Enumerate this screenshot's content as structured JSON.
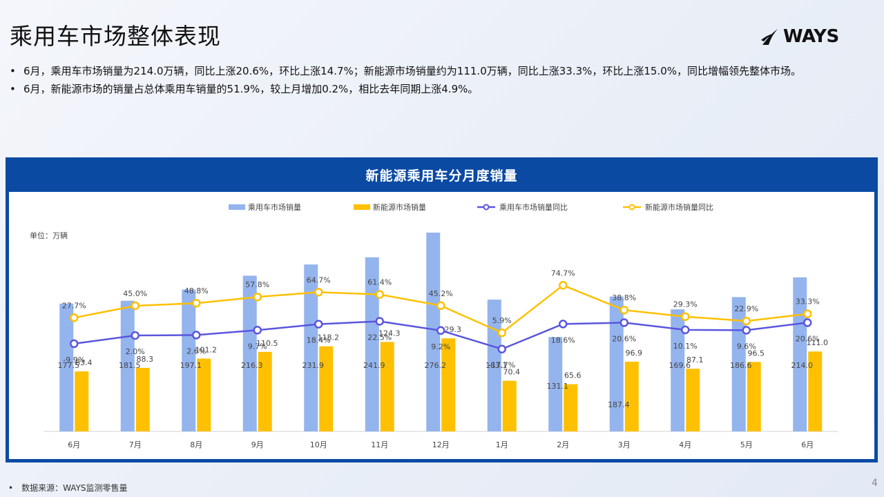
{
  "slide": {
    "title": "乘用车市场整体表现",
    "logo_text": "WAYS",
    "bullets": [
      "6月，乘用车市场销量为214.0万辆，同比上涨20.6%，环比上涨14.7%；新能源市场销量约为111.0万辆，同比上涨33.3%，环比上涨15.0%，同比增幅领先整体市场。",
      "6月，新能源市场的销量占总体乘用车销量的51.9%，较上月增加0.2%，相比去年同期上涨4.9%。"
    ],
    "source": "数据来源：WAYS监测零售量",
    "page_number": "4"
  },
  "colors": {
    "panel": "#0a4aa3",
    "total_bar": "#94b4ee",
    "nev_bar": "#ffc000",
    "total_line": "#5a55de",
    "nev_line": "#ffc000"
  },
  "chart_data": {
    "type": "bar",
    "title": "新能源乘用车分月度销量",
    "unit_label": "单位：万辆",
    "categories": [
      "6月",
      "7月",
      "8月",
      "9月",
      "10月",
      "11月",
      "12月",
      "1月",
      "2月",
      "3月",
      "4月",
      "5月",
      "6月"
    ],
    "series": [
      {
        "name": "乘用车市场销量",
        "kind": "bar",
        "values": [
          177.5,
          181.5,
          197.1,
          216.3,
          231.9,
          241.9,
          276.2,
          183.1,
          131.1,
          187.4,
          169.6,
          186.6,
          214.0
        ]
      },
      {
        "name": "新能源市场销量",
        "kind": "bar",
        "values": [
          83.4,
          88.3,
          101.2,
          110.5,
          118.2,
          124.3,
          129.3,
          70.4,
          65.6,
          96.9,
          87.1,
          96.5,
          111.0
        ]
      },
      {
        "name": "乘用车市场销量同比",
        "kind": "line",
        "axis": "secondary",
        "values": [
          -9.9,
          2.0,
          2.6,
          9.7,
          18.4,
          22.5,
          9.2,
          -17.7,
          18.6,
          20.6,
          10.1,
          9.6,
          20.6
        ]
      },
      {
        "name": "新能源市场销量同比",
        "kind": "line",
        "axis": "secondary",
        "values": [
          27.7,
          45.0,
          48.8,
          57.8,
          64.7,
          61.4,
          45.2,
          5.9,
          74.7,
          38.8,
          29.3,
          22.9,
          33.3
        ]
      }
    ],
    "bar_labels": {
      "total": [
        "177.5",
        "181.5",
        "197.1",
        "216.3",
        "231.9",
        "241.9",
        "276.2",
        "183.1",
        "131.1",
        "187.4",
        "169.6",
        "186.6",
        "214.0"
      ],
      "nev": [
        "83.4",
        "88.3",
        "101.2",
        "110.5",
        "118.2",
        "124.3",
        "129.3",
        "70.4",
        "65.6",
        "96.9",
        "87.1",
        "96.5",
        "111.0"
      ]
    },
    "line_labels": {
      "total_yoy": [
        "-9.9%",
        "2.0%",
        "2.6%",
        "9.7%",
        "18.4%",
        "22.5%",
        "9.2%",
        "-17.7%",
        "18.6%",
        "20.6%",
        "10.1%",
        "9.6%",
        "20.6%"
      ],
      "nev_yoy": [
        "27.7%",
        "45.0%",
        "48.8%",
        "57.8%",
        "64.7%",
        "61.4%",
        "45.2%",
        "5.9%",
        "74.7%",
        "38.8%",
        "29.3%",
        "22.9%",
        "33.3%"
      ]
    },
    "ylim": [
      0,
      280
    ],
    "y2lim": [
      -150,
      160
    ],
    "grid": false,
    "legend_position": "top"
  }
}
